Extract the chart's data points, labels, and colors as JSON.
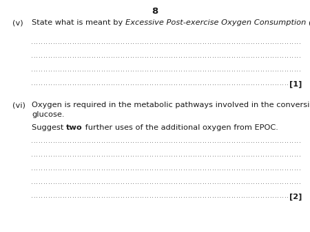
{
  "page_number": "8",
  "background_color": "#ffffff",
  "text_color": "#1a1a1a",
  "dot_color": "#666666",
  "question_v_label": "(v)",
  "question_v_text_plain": "State what is meant by ",
  "question_v_text_italic": "Excessive Post-exercise Oxygen Consumption (EPOC).",
  "question_v_mark": "[1]",
  "question_vi_label": "(vi)",
  "question_vi_text1": "Oxygen is required in the metabolic pathways involved in the conversion of lactate to",
  "question_vi_text2": "glucose.",
  "question_vi_subtext_plain": "Suggest ",
  "question_vi_subtext_bold": "two",
  "question_vi_subtext_rest": " further uses of the additional oxygen from EPOC.",
  "question_vi_mark": "[2]",
  "font_size_main": 8.2,
  "font_size_page": 9.5
}
